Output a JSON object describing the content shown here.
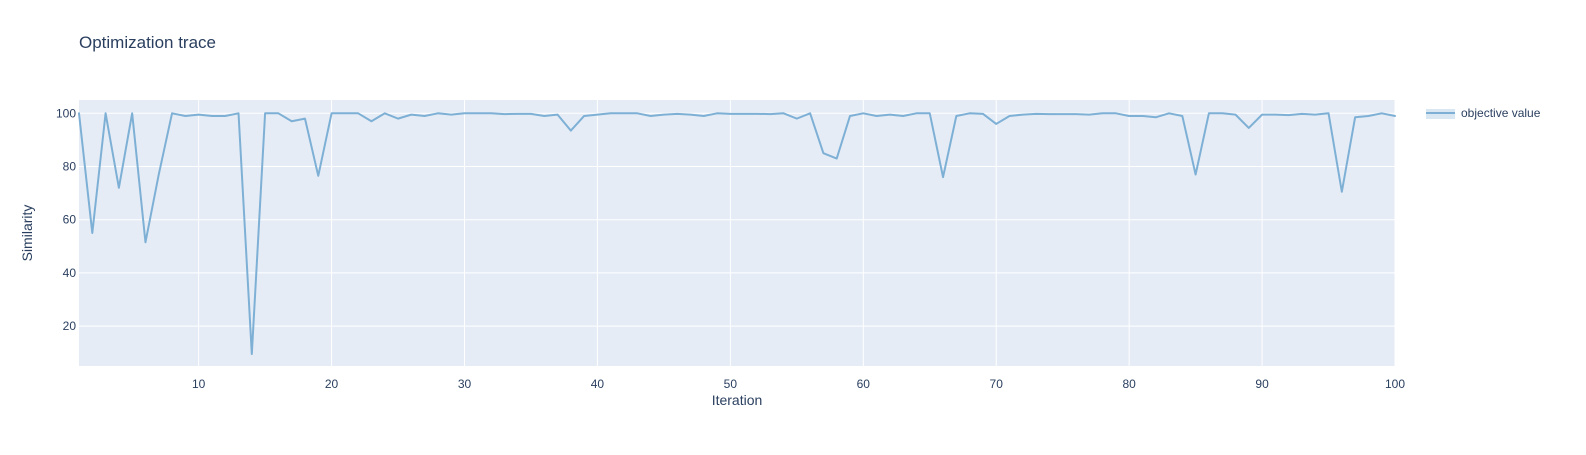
{
  "chart_data": {
    "type": "line",
    "title": "Optimization trace",
    "xlabel": "Iteration",
    "ylabel": "Similarity",
    "xlim": [
      1,
      100
    ],
    "ylim": [
      5,
      105
    ],
    "xticks": [
      10,
      20,
      30,
      40,
      50,
      60,
      70,
      80,
      90,
      100
    ],
    "yticks": [
      20,
      40,
      60,
      80,
      100
    ],
    "grid": true,
    "legend_position": "top-right",
    "colors": {
      "plot_background": "#e5ecf6",
      "grid": "#ffffff",
      "series": "#7eb0d5",
      "text": "#2a3f5f"
    },
    "series": [
      {
        "name": "objective value",
        "x": [
          1,
          2,
          3,
          4,
          5,
          6,
          7,
          8,
          9,
          10,
          11,
          12,
          13,
          14,
          15,
          16,
          17,
          18,
          19,
          20,
          21,
          22,
          23,
          24,
          25,
          26,
          27,
          28,
          29,
          30,
          31,
          32,
          33,
          34,
          35,
          36,
          37,
          38,
          39,
          40,
          41,
          42,
          43,
          44,
          45,
          46,
          47,
          48,
          49,
          50,
          51,
          52,
          53,
          54,
          55,
          56,
          57,
          58,
          59,
          60,
          61,
          62,
          63,
          64,
          65,
          66,
          67,
          68,
          69,
          70,
          71,
          72,
          73,
          74,
          75,
          76,
          77,
          78,
          79,
          80,
          81,
          82,
          83,
          84,
          85,
          86,
          87,
          88,
          89,
          90,
          91,
          92,
          93,
          94,
          95,
          96,
          97,
          98,
          99,
          100
        ],
        "y": [
          100,
          55,
          100,
          72,
          100,
          51.5,
          77,
          100,
          99,
          99.5,
          99,
          99,
          100,
          9.5,
          100,
          100,
          97,
          98,
          76.5,
          100,
          100,
          100,
          97,
          100,
          98,
          99.5,
          99,
          100,
          99.5,
          100,
          100,
          100,
          99.7,
          99.8,
          99.8,
          99,
          99.5,
          93.5,
          99,
          99.5,
          100,
          100,
          100,
          99,
          99.5,
          99.8,
          99.5,
          99,
          100,
          99.8,
          99.8,
          99.8,
          99.7,
          100,
          98,
          100,
          85,
          83,
          99,
          100,
          99,
          99.5,
          99,
          100,
          100,
          76,
          99,
          100,
          99.8,
          96,
          99,
          99.5,
          99.8,
          99.7,
          99.7,
          99.7,
          99.5,
          100,
          100,
          99,
          99,
          98.5,
          100,
          99,
          77,
          100,
          100,
          99.5,
          94.5,
          99.5,
          99.5,
          99.3,
          99.8,
          99.5,
          100,
          70.5,
          98.5,
          99,
          100,
          99
        ]
      }
    ]
  }
}
